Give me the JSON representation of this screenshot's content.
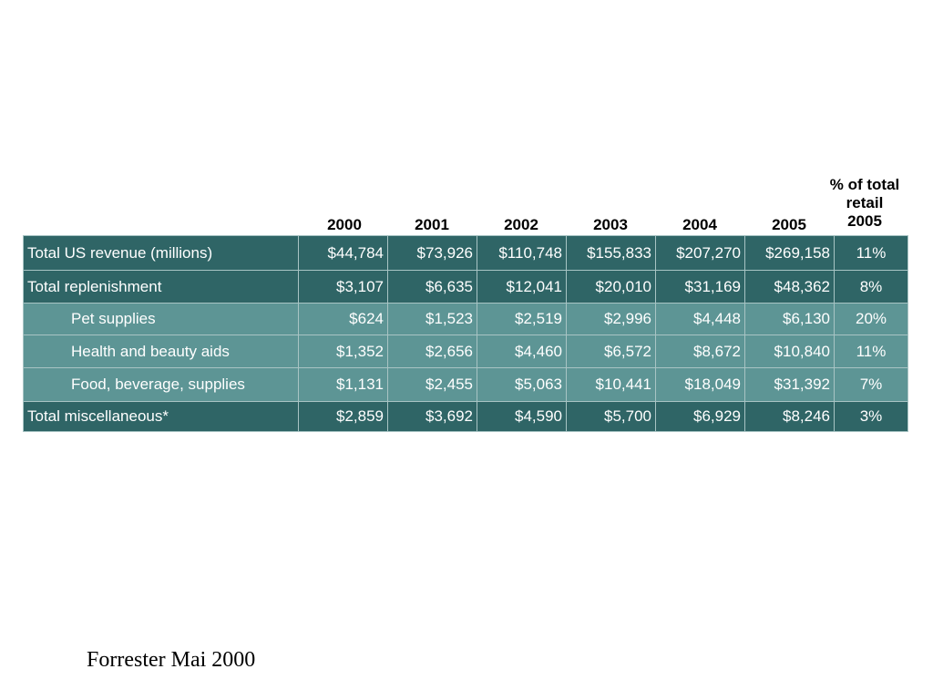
{
  "table": {
    "headers": {
      "years": [
        "2000",
        "2001",
        "2002",
        "2003",
        "2004",
        "2005"
      ],
      "pct_line1": "% of total",
      "pct_line2": "retail",
      "pct_line3": "2005"
    },
    "rows": [
      {
        "label": "Total US revenue (millions)",
        "values": [
          "$44,784",
          "$73,926",
          "$110,748",
          "$155,833",
          "$207,270",
          "$269,158"
        ],
        "pct": "11%",
        "style": "dark",
        "indent": false
      },
      {
        "label": "Total replenishment",
        "values": [
          "$3,107",
          "$6,635",
          "$12,041",
          "$20,010",
          "$31,169",
          "$48,362"
        ],
        "pct": "8%",
        "style": "dark",
        "indent": false
      },
      {
        "label": "Pet supplies",
        "values": [
          "$624",
          "$1,523",
          "$2,519",
          "$2,996",
          "$4,448",
          "$6,130"
        ],
        "pct": "20%",
        "style": "light",
        "indent": true
      },
      {
        "label": "Health and beauty aids",
        "values": [
          "$1,352",
          "$2,656",
          "$4,460",
          "$6,572",
          "$8,672",
          "$10,840"
        ],
        "pct": "11%",
        "style": "light",
        "indent": true
      },
      {
        "label": "Food, beverage, supplies",
        "values": [
          "$1,131",
          "$2,455",
          "$5,063",
          "$10,441",
          "$18,049",
          "$31,392"
        ],
        "pct": "7%",
        "style": "light",
        "indent": true
      },
      {
        "label": "Total miscellaneous*",
        "values": [
          "$2,859",
          "$3,692",
          "$4,590",
          "$5,700",
          "$6,929",
          "$8,246"
        ],
        "pct": "3%",
        "style": "dark",
        "indent": false
      }
    ]
  },
  "footer": {
    "source": "Forrester Mai 2000"
  },
  "colors": {
    "dark_row": "#2f6566",
    "light_row": "#5d9595",
    "cell_border": "#a8c4c4",
    "text_on_rows": "#ffffff"
  }
}
